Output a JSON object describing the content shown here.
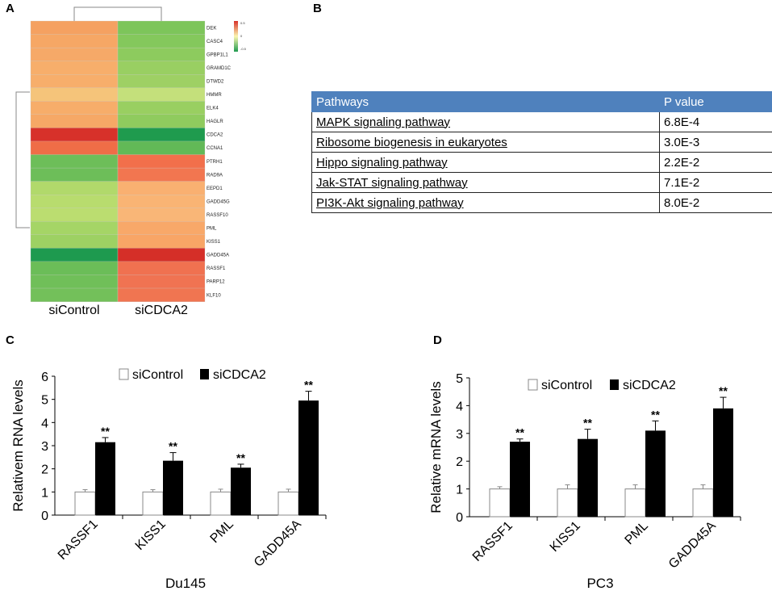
{
  "panels": {
    "A": "A",
    "B": "B",
    "C": "C",
    "D": "D"
  },
  "colors": {
    "bar_control": "#ffffff",
    "bar_treated": "#000000",
    "table_header": "#4f81bd"
  },
  "heatmap": {
    "columns": [
      "siControl",
      "siCDCA2"
    ],
    "colorbar_labels": [
      "0.5",
      "0",
      "-0.5"
    ],
    "rows": [
      {
        "gene": "DEK",
        "colors": [
          "#f5a161",
          "#7dc55a"
        ]
      },
      {
        "gene": "CASC4",
        "colors": [
          "#f6a765",
          "#84c85c"
        ]
      },
      {
        "gene": "GPBP1L1",
        "colors": [
          "#f6a968",
          "#8dcb5e"
        ]
      },
      {
        "gene": "GRAMD1C",
        "colors": [
          "#f7ae6b",
          "#99cf62"
        ]
      },
      {
        "gene": "DTWD2",
        "colors": [
          "#f7ae6b",
          "#9ed064"
        ]
      },
      {
        "gene": "HMMR",
        "colors": [
          "#f5c47a",
          "#c4e07b"
        ]
      },
      {
        "gene": "ELK4",
        "colors": [
          "#f7ad6a",
          "#99cf61"
        ]
      },
      {
        "gene": "HAGLR",
        "colors": [
          "#f6a866",
          "#8fcb5e"
        ]
      },
      {
        "gene": "CDCA2",
        "colors": [
          "#d7312a",
          "#1f9b4e"
        ]
      },
      {
        "gene": "CCNA1",
        "colors": [
          "#ef6d47",
          "#62b957"
        ]
      },
      {
        "gene": "PTRH1",
        "colors": [
          "#6dbe59",
          "#f26f4b"
        ]
      },
      {
        "gene": "RAD9A",
        "colors": [
          "#6dbe59",
          "#f27650"
        ]
      },
      {
        "gene": "EEPD1",
        "colors": [
          "#b1d96b",
          "#f9b071"
        ]
      },
      {
        "gene": "GADD45G",
        "colors": [
          "#b8dc6e",
          "#f9b474"
        ]
      },
      {
        "gene": "RASSF10",
        "colors": [
          "#bbdd70",
          "#f9b677"
        ]
      },
      {
        "gene": "PML",
        "colors": [
          "#a5d566",
          "#f8a869"
        ]
      },
      {
        "gene": "KISS1",
        "colors": [
          "#9dd163",
          "#f8a566"
        ]
      },
      {
        "gene": "GADD45A",
        "colors": [
          "#1e9a4f",
          "#d52f28"
        ]
      },
      {
        "gene": "RASSF1",
        "colors": [
          "#6bbd58",
          "#f07150"
        ]
      },
      {
        "gene": "PARP12",
        "colors": [
          "#70bf59",
          "#f07352"
        ]
      },
      {
        "gene": "KLF10",
        "colors": [
          "#73c05a",
          "#f07551"
        ]
      }
    ]
  },
  "table": {
    "headers": [
      "Pathways",
      "P value"
    ],
    "rows": [
      {
        "pathway": "MAPK signaling pathway",
        "p": "6.8E-4"
      },
      {
        "pathway": "Ribosome biogenesis in eukaryotes",
        "p": "3.0E-3"
      },
      {
        "pathway": "Hippo signaling pathway",
        "p": "2.2E-2"
      },
      {
        "pathway": "Jak-STAT signaling pathway",
        "p": "7.1E-2"
      },
      {
        "pathway": "PI3K-Akt signaling pathway",
        "p": "8.0E-2"
      }
    ]
  },
  "chart_data": [
    {
      "type": "bar",
      "panel": "C",
      "categories": [
        "RASSF1",
        "KISS1",
        "PML",
        "GADD45A"
      ],
      "series": [
        {
          "name": "siControl",
          "values": [
            1.0,
            1.0,
            1.0,
            1.0
          ],
          "errors": [
            0.1,
            0.1,
            0.12,
            0.12
          ]
        },
        {
          "name": "siCDCA2",
          "values": [
            3.15,
            2.35,
            2.05,
            4.95
          ],
          "errors": [
            0.2,
            0.35,
            0.15,
            0.4
          ]
        }
      ],
      "significance": [
        "**",
        "**",
        "**",
        "**"
      ],
      "xlabel": "Du145",
      "ylabel": "Relativem RNA levels",
      "ylim": [
        0,
        6
      ],
      "yticks": [
        "0",
        "1",
        "2",
        "3",
        "4",
        "5",
        "6"
      ],
      "legend": "top"
    },
    {
      "type": "bar",
      "panel": "D",
      "categories": [
        "RASSF1",
        "KISS1",
        "PML",
        "GADD45A"
      ],
      "series": [
        {
          "name": "siControl",
          "values": [
            1.0,
            1.0,
            1.0,
            1.0
          ],
          "errors": [
            0.08,
            0.15,
            0.15,
            0.15
          ]
        },
        {
          "name": "siCDCA2",
          "values": [
            2.7,
            2.8,
            3.1,
            3.9
          ],
          "errors": [
            0.1,
            0.35,
            0.35,
            0.4
          ]
        }
      ],
      "significance": [
        "**",
        "**",
        "**",
        "**"
      ],
      "xlabel": "PC3",
      "ylabel": "Relative mRNA levels",
      "ylim": [
        0,
        5
      ],
      "yticks": [
        "0",
        "1",
        "2",
        "3",
        "4",
        "5"
      ],
      "legend": "top"
    }
  ]
}
